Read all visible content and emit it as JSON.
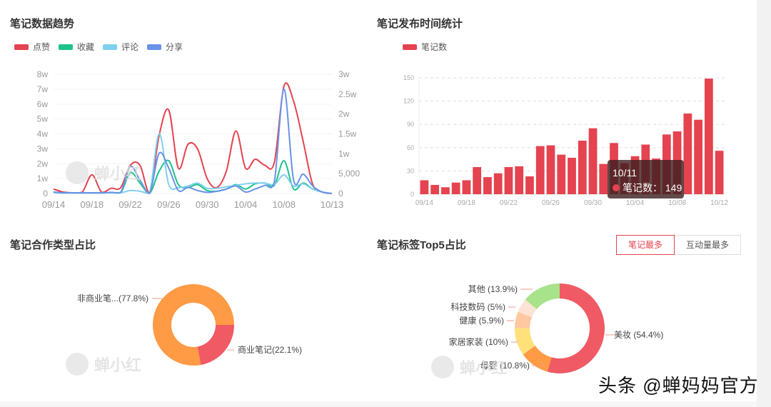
{
  "panels": {
    "trend": {
      "title": "笔记数据趋势",
      "legend": [
        {
          "label": "点赞",
          "color": "#e4434f"
        },
        {
          "label": "收藏",
          "color": "#1ec28b"
        },
        {
          "label": "评论",
          "color": "#7fd0f0"
        },
        {
          "label": "分享",
          "color": "#6a92e8"
        }
      ]
    },
    "publish": {
      "title": "笔记发布时间统计",
      "legend": [
        {
          "label": "笔记数",
          "color": "#e4434f"
        }
      ],
      "tooltip": {
        "date": "10/11",
        "label": "笔记数：",
        "value": "149"
      }
    },
    "coop": {
      "title": "笔记合作类型占比"
    },
    "tags": {
      "title": "笔记标签Top5占比",
      "toggle": [
        {
          "label": "笔记最多",
          "active": true
        },
        {
          "label": "互动量最多",
          "active": false
        }
      ]
    }
  },
  "watermark": {
    "brand": "蝉小红",
    "footer": "头条 @蝉妈妈官方"
  },
  "chart_data": [
    {
      "type": "line",
      "title": "笔记数据趋势",
      "x": [
        "09/14",
        "09/15",
        "09/16",
        "09/17",
        "09/18",
        "09/19",
        "09/20",
        "09/21",
        "09/22",
        "09/23",
        "09/24",
        "09/25",
        "09/26",
        "09/27",
        "09/28",
        "09/29",
        "09/30",
        "10/01",
        "10/02",
        "10/03",
        "10/04",
        "10/05",
        "10/06",
        "10/07",
        "10/08",
        "10/09",
        "10/10",
        "10/11",
        "10/12",
        "10/13"
      ],
      "xticks": [
        "09/14",
        "09/18",
        "09/22",
        "09/26",
        "09/30",
        "10/04",
        "10/08",
        "10/13"
      ],
      "yticks_left": [
        "0",
        "1w",
        "2w",
        "3w",
        "4w",
        "5w",
        "6w",
        "7w",
        "8w"
      ],
      "yticks_right": [
        "0",
        "5,000",
        "1w",
        "1.5w",
        "2w",
        "2.5w",
        "3w"
      ],
      "ylim_left": [
        0,
        80000
      ],
      "ylim_right": [
        0,
        30000
      ],
      "series": [
        {
          "name": "点赞",
          "color": "#e4434f",
          "values": [
            3000,
            1000,
            500,
            1000,
            12500,
            1000,
            3500,
            4000,
            19000,
            19000,
            500,
            39000,
            56000,
            17000,
            33000,
            30000,
            10000,
            4000,
            15000,
            42000,
            17000,
            23000,
            19000,
            21000,
            72000,
            62000,
            35000,
            6000,
            1000,
            0
          ]
        },
        {
          "name": "收藏",
          "color": "#1ec28b",
          "values": [
            500,
            300,
            300,
            300,
            300,
            300,
            500,
            500,
            14000,
            7000,
            100,
            15000,
            22000,
            6000,
            4000,
            6000,
            2000,
            1500,
            3000,
            6000,
            3000,
            6500,
            7000,
            5500,
            22000,
            3000,
            7000,
            3000,
            1000,
            0
          ]
        },
        {
          "name": "评论",
          "color": "#7fd0f0",
          "values": [
            500,
            300,
            300,
            300,
            300,
            300,
            500,
            500,
            2000,
            1500,
            100,
            40000,
            6000,
            4000,
            5000,
            7000,
            3500,
            3500,
            4500,
            5500,
            6500,
            7000,
            7000,
            6000,
            12500,
            5000,
            6500,
            3000,
            1000,
            0
          ]
        },
        {
          "name": "分享",
          "color": "#6a92e8",
          "values": [
            1000,
            500,
            500,
            500,
            500,
            500,
            800,
            800,
            18000,
            9000,
            100,
            27000,
            17000,
            2000,
            4000,
            2000,
            800,
            1500,
            3000,
            5000,
            1000,
            3000,
            5500,
            8000,
            70000,
            9000,
            13000,
            5000,
            1000,
            0
          ]
        }
      ]
    },
    {
      "type": "bar",
      "title": "笔记发布时间统计",
      "categories": [
        "09/14",
        "09/15",
        "09/16",
        "09/17",
        "09/18",
        "09/19",
        "09/20",
        "09/21",
        "09/22",
        "09/23",
        "09/24",
        "09/25",
        "09/26",
        "09/27",
        "09/28",
        "09/29",
        "09/30",
        "10/01",
        "10/02",
        "10/03",
        "10/04",
        "10/05",
        "10/06",
        "10/07",
        "10/08",
        "10/09",
        "10/10",
        "10/11",
        "10/12"
      ],
      "xticks": [
        "09/14",
        "09/18",
        "09/22",
        "09/26",
        "09/30",
        "10/04",
        "10/08",
        "10/12"
      ],
      "values": [
        18,
        12,
        9,
        15,
        18,
        35,
        22,
        27,
        35,
        36,
        23,
        62,
        63,
        51,
        47,
        69,
        85,
        39,
        66,
        40,
        49,
        64,
        46,
        77,
        81,
        104,
        96,
        149,
        56
      ],
      "yticks": [
        "0",
        "30",
        "60",
        "90",
        "120",
        "150"
      ],
      "ylim": [
        0,
        150
      ],
      "legend": [
        "笔记数"
      ]
    },
    {
      "type": "pie",
      "title": "笔记合作类型占比",
      "slices": [
        {
          "label": "商业笔记(22.1%)",
          "name": "商业笔记",
          "value": 22.1,
          "color": "#f05a64"
        },
        {
          "label": "非商业笔...(77.8%)",
          "name": "非商业笔记",
          "value": 77.8,
          "color": "#ff9a45"
        }
      ]
    },
    {
      "type": "pie",
      "title": "笔记标签Top5占比",
      "slices": [
        {
          "label": "美妆 (54.4%)",
          "name": "美妆",
          "value": 54.4,
          "color": "#f05a64"
        },
        {
          "label": "母婴 (10.8%)",
          "name": "母婴",
          "value": 10.8,
          "color": "#ff9a45"
        },
        {
          "label": "家居家装 (10%)",
          "name": "家居家装",
          "value": 10.0,
          "color": "#ffe07a"
        },
        {
          "label": "健康 (5.9%)",
          "name": "健康",
          "value": 5.9,
          "color": "#ffc8a0"
        },
        {
          "label": "科技数码 (5%)",
          "name": "科技数码",
          "value": 5.0,
          "color": "#fde3d4"
        },
        {
          "label": "其他 (13.9%)",
          "name": "其他",
          "value": 13.9,
          "color": "#a8e28a"
        }
      ]
    }
  ]
}
